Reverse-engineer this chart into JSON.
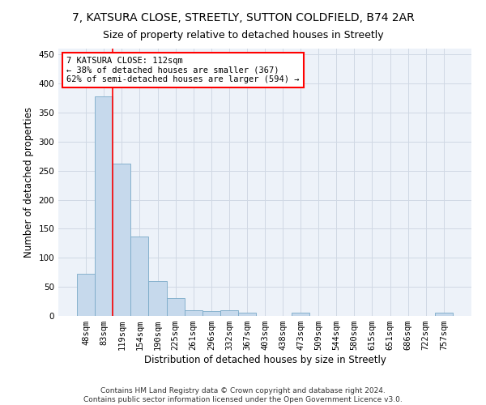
{
  "title": "7, KATSURA CLOSE, STREETLY, SUTTON COLDFIELD, B74 2AR",
  "subtitle": "Size of property relative to detached houses in Streetly",
  "xlabel": "Distribution of detached houses by size in Streetly",
  "ylabel": "Number of detached properties",
  "bar_color": "#c6d9ec",
  "bar_edge_color": "#7aaac8",
  "grid_color": "#d0d8e4",
  "bg_color": "#edf2f9",
  "categories": [
    "48sqm",
    "83sqm",
    "119sqm",
    "154sqm",
    "190sqm",
    "225sqm",
    "261sqm",
    "296sqm",
    "332sqm",
    "367sqm",
    "403sqm",
    "438sqm",
    "473sqm",
    "509sqm",
    "544sqm",
    "580sqm",
    "615sqm",
    "651sqm",
    "686sqm",
    "722sqm",
    "757sqm"
  ],
  "values": [
    72,
    378,
    262,
    136,
    60,
    30,
    10,
    9,
    10,
    6,
    0,
    0,
    5,
    0,
    0,
    0,
    0,
    0,
    0,
    0,
    5
  ],
  "ylim": [
    0,
    460
  ],
  "yticks": [
    0,
    50,
    100,
    150,
    200,
    250,
    300,
    350,
    400,
    450
  ],
  "red_line_x": 1.5,
  "annotation_text": "7 KATSURA CLOSE: 112sqm\n← 38% of detached houses are smaller (367)\n62% of semi-detached houses are larger (594) →",
  "footer": "Contains HM Land Registry data © Crown copyright and database right 2024.\nContains public sector information licensed under the Open Government Licence v3.0.",
  "title_fontsize": 10,
  "subtitle_fontsize": 9,
  "axis_label_fontsize": 8.5,
  "tick_fontsize": 7.5,
  "footer_fontsize": 6.5
}
